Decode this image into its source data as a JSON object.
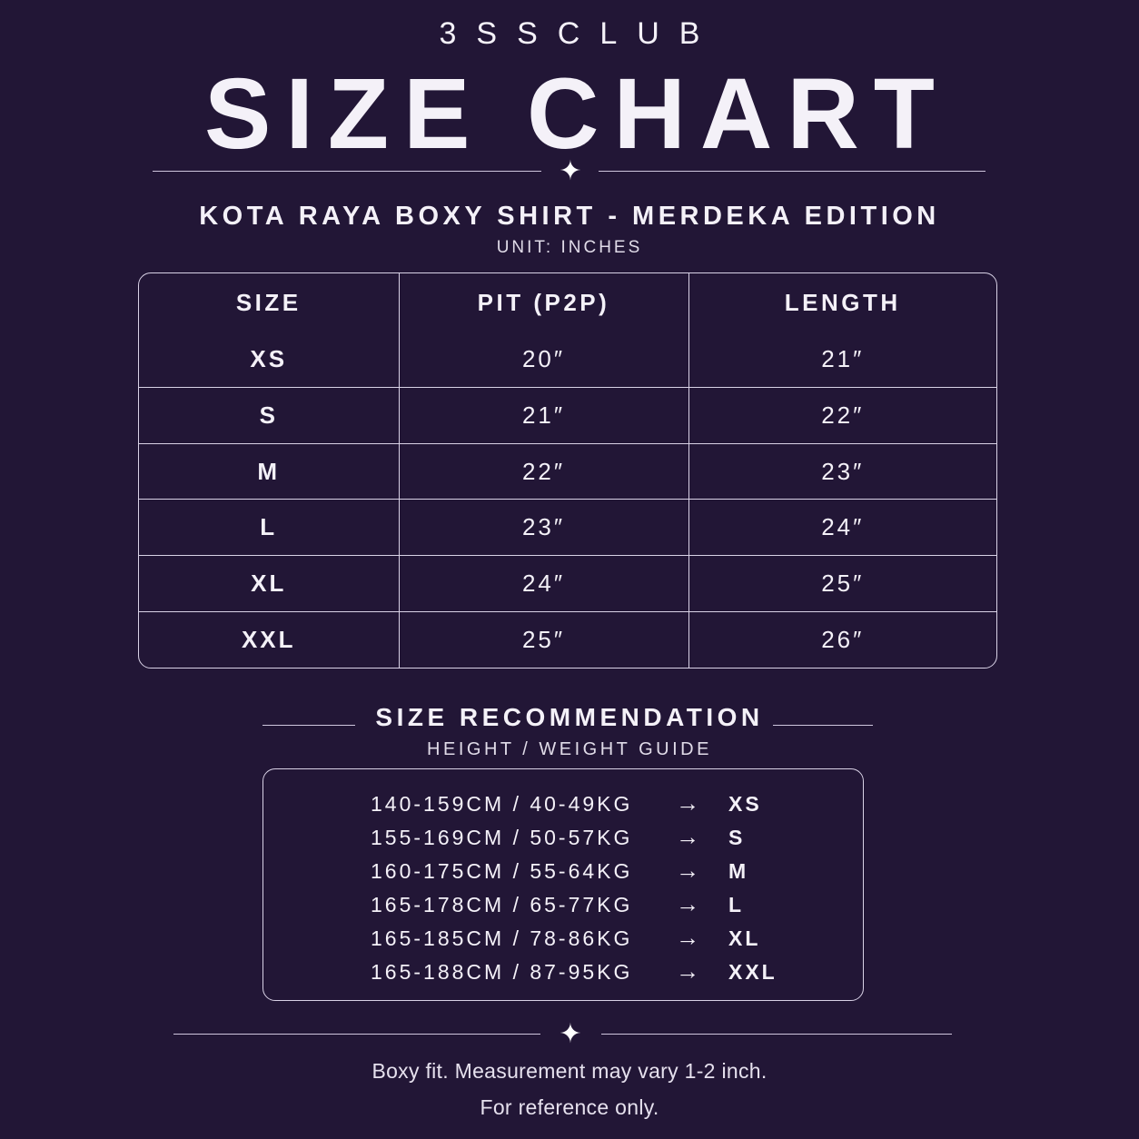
{
  "header": {
    "brand": "3SSCLUB",
    "title": "SIZE CHART",
    "product": "KOTA RAYA BOXY SHIRT - MERDEKA EDITION",
    "unit": "UNIT: INCHES"
  },
  "size_table": {
    "columns": [
      "SIZE",
      "PIT (P2P)",
      "LENGTH"
    ],
    "rows": [
      {
        "size": "XS",
        "pit": "20″",
        "length": "21″"
      },
      {
        "size": "S",
        "pit": "21″",
        "length": "22″"
      },
      {
        "size": "M",
        "pit": "22″",
        "length": "23″"
      },
      {
        "size": "L",
        "pit": "23″",
        "length": "24″"
      },
      {
        "size": "XL",
        "pit": "24″",
        "length": "25″"
      },
      {
        "size": "XXL",
        "pit": "25″",
        "length": "26″"
      }
    ]
  },
  "recommendation": {
    "title": "SIZE RECOMMENDATION",
    "subtitle": "HEIGHT / WEIGHT GUIDE",
    "arrow": "→",
    "rows": [
      {
        "range": "140-159CM / 40-49KG",
        "size": "XS"
      },
      {
        "range": "155-169CM / 50-57KG",
        "size": "S"
      },
      {
        "range": "160-175CM / 55-64KG",
        "size": "M"
      },
      {
        "range": "165-178CM / 65-77KG",
        "size": "L"
      },
      {
        "range": "165-185CM / 78-86KG",
        "size": "XL"
      },
      {
        "range": "165-188CM / 87-95KG",
        "size": "XXL"
      }
    ]
  },
  "footer": {
    "line1": "Boxy fit. Measurement may vary 1-2 inch.",
    "line2": "For reference only."
  },
  "icons": {
    "sparkle": "sparkle-icon"
  },
  "colors": {
    "background": "#221636",
    "text": "#f4f1f8",
    "rule": "#d9d2e6"
  }
}
